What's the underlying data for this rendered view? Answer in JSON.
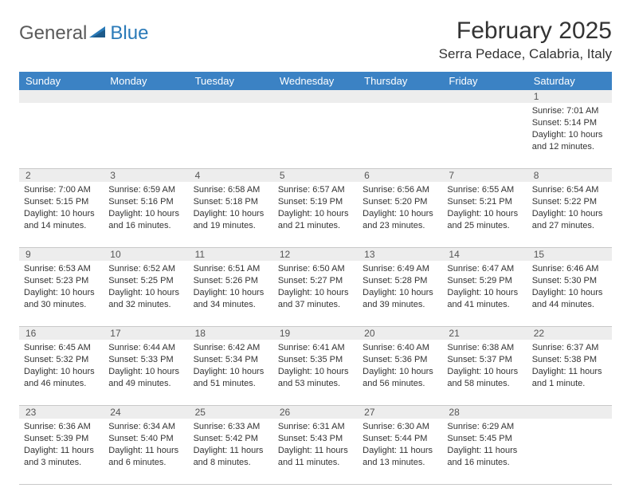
{
  "logo": {
    "text1": "General",
    "text2": "Blue"
  },
  "title": "February 2025",
  "location": "Serra Pedace, Calabria, Italy",
  "theme": {
    "header_bg": "#3b82c4",
    "header_fg": "#ffffff",
    "numrow_bg": "#ededed",
    "border": "#c8c8c8",
    "text": "#333333"
  },
  "weekdays": [
    "Sunday",
    "Monday",
    "Tuesday",
    "Wednesday",
    "Thursday",
    "Friday",
    "Saturday"
  ],
  "weeks": [
    [
      null,
      null,
      null,
      null,
      null,
      null,
      {
        "n": "1",
        "sr": "Sunrise: 7:01 AM",
        "ss": "Sunset: 5:14 PM",
        "dl": "Daylight: 10 hours and 12 minutes."
      }
    ],
    [
      {
        "n": "2",
        "sr": "Sunrise: 7:00 AM",
        "ss": "Sunset: 5:15 PM",
        "dl": "Daylight: 10 hours and 14 minutes."
      },
      {
        "n": "3",
        "sr": "Sunrise: 6:59 AM",
        "ss": "Sunset: 5:16 PM",
        "dl": "Daylight: 10 hours and 16 minutes."
      },
      {
        "n": "4",
        "sr": "Sunrise: 6:58 AM",
        "ss": "Sunset: 5:18 PM",
        "dl": "Daylight: 10 hours and 19 minutes."
      },
      {
        "n": "5",
        "sr": "Sunrise: 6:57 AM",
        "ss": "Sunset: 5:19 PM",
        "dl": "Daylight: 10 hours and 21 minutes."
      },
      {
        "n": "6",
        "sr": "Sunrise: 6:56 AM",
        "ss": "Sunset: 5:20 PM",
        "dl": "Daylight: 10 hours and 23 minutes."
      },
      {
        "n": "7",
        "sr": "Sunrise: 6:55 AM",
        "ss": "Sunset: 5:21 PM",
        "dl": "Daylight: 10 hours and 25 minutes."
      },
      {
        "n": "8",
        "sr": "Sunrise: 6:54 AM",
        "ss": "Sunset: 5:22 PM",
        "dl": "Daylight: 10 hours and 27 minutes."
      }
    ],
    [
      {
        "n": "9",
        "sr": "Sunrise: 6:53 AM",
        "ss": "Sunset: 5:23 PM",
        "dl": "Daylight: 10 hours and 30 minutes."
      },
      {
        "n": "10",
        "sr": "Sunrise: 6:52 AM",
        "ss": "Sunset: 5:25 PM",
        "dl": "Daylight: 10 hours and 32 minutes."
      },
      {
        "n": "11",
        "sr": "Sunrise: 6:51 AM",
        "ss": "Sunset: 5:26 PM",
        "dl": "Daylight: 10 hours and 34 minutes."
      },
      {
        "n": "12",
        "sr": "Sunrise: 6:50 AM",
        "ss": "Sunset: 5:27 PM",
        "dl": "Daylight: 10 hours and 37 minutes."
      },
      {
        "n": "13",
        "sr": "Sunrise: 6:49 AM",
        "ss": "Sunset: 5:28 PM",
        "dl": "Daylight: 10 hours and 39 minutes."
      },
      {
        "n": "14",
        "sr": "Sunrise: 6:47 AM",
        "ss": "Sunset: 5:29 PM",
        "dl": "Daylight: 10 hours and 41 minutes."
      },
      {
        "n": "15",
        "sr": "Sunrise: 6:46 AM",
        "ss": "Sunset: 5:30 PM",
        "dl": "Daylight: 10 hours and 44 minutes."
      }
    ],
    [
      {
        "n": "16",
        "sr": "Sunrise: 6:45 AM",
        "ss": "Sunset: 5:32 PM",
        "dl": "Daylight: 10 hours and 46 minutes."
      },
      {
        "n": "17",
        "sr": "Sunrise: 6:44 AM",
        "ss": "Sunset: 5:33 PM",
        "dl": "Daylight: 10 hours and 49 minutes."
      },
      {
        "n": "18",
        "sr": "Sunrise: 6:42 AM",
        "ss": "Sunset: 5:34 PM",
        "dl": "Daylight: 10 hours and 51 minutes."
      },
      {
        "n": "19",
        "sr": "Sunrise: 6:41 AM",
        "ss": "Sunset: 5:35 PM",
        "dl": "Daylight: 10 hours and 53 minutes."
      },
      {
        "n": "20",
        "sr": "Sunrise: 6:40 AM",
        "ss": "Sunset: 5:36 PM",
        "dl": "Daylight: 10 hours and 56 minutes."
      },
      {
        "n": "21",
        "sr": "Sunrise: 6:38 AM",
        "ss": "Sunset: 5:37 PM",
        "dl": "Daylight: 10 hours and 58 minutes."
      },
      {
        "n": "22",
        "sr": "Sunrise: 6:37 AM",
        "ss": "Sunset: 5:38 PM",
        "dl": "Daylight: 11 hours and 1 minute."
      }
    ],
    [
      {
        "n": "23",
        "sr": "Sunrise: 6:36 AM",
        "ss": "Sunset: 5:39 PM",
        "dl": "Daylight: 11 hours and 3 minutes."
      },
      {
        "n": "24",
        "sr": "Sunrise: 6:34 AM",
        "ss": "Sunset: 5:40 PM",
        "dl": "Daylight: 11 hours and 6 minutes."
      },
      {
        "n": "25",
        "sr": "Sunrise: 6:33 AM",
        "ss": "Sunset: 5:42 PM",
        "dl": "Daylight: 11 hours and 8 minutes."
      },
      {
        "n": "26",
        "sr": "Sunrise: 6:31 AM",
        "ss": "Sunset: 5:43 PM",
        "dl": "Daylight: 11 hours and 11 minutes."
      },
      {
        "n": "27",
        "sr": "Sunrise: 6:30 AM",
        "ss": "Sunset: 5:44 PM",
        "dl": "Daylight: 11 hours and 13 minutes."
      },
      {
        "n": "28",
        "sr": "Sunrise: 6:29 AM",
        "ss": "Sunset: 5:45 PM",
        "dl": "Daylight: 11 hours and 16 minutes."
      },
      null
    ]
  ]
}
